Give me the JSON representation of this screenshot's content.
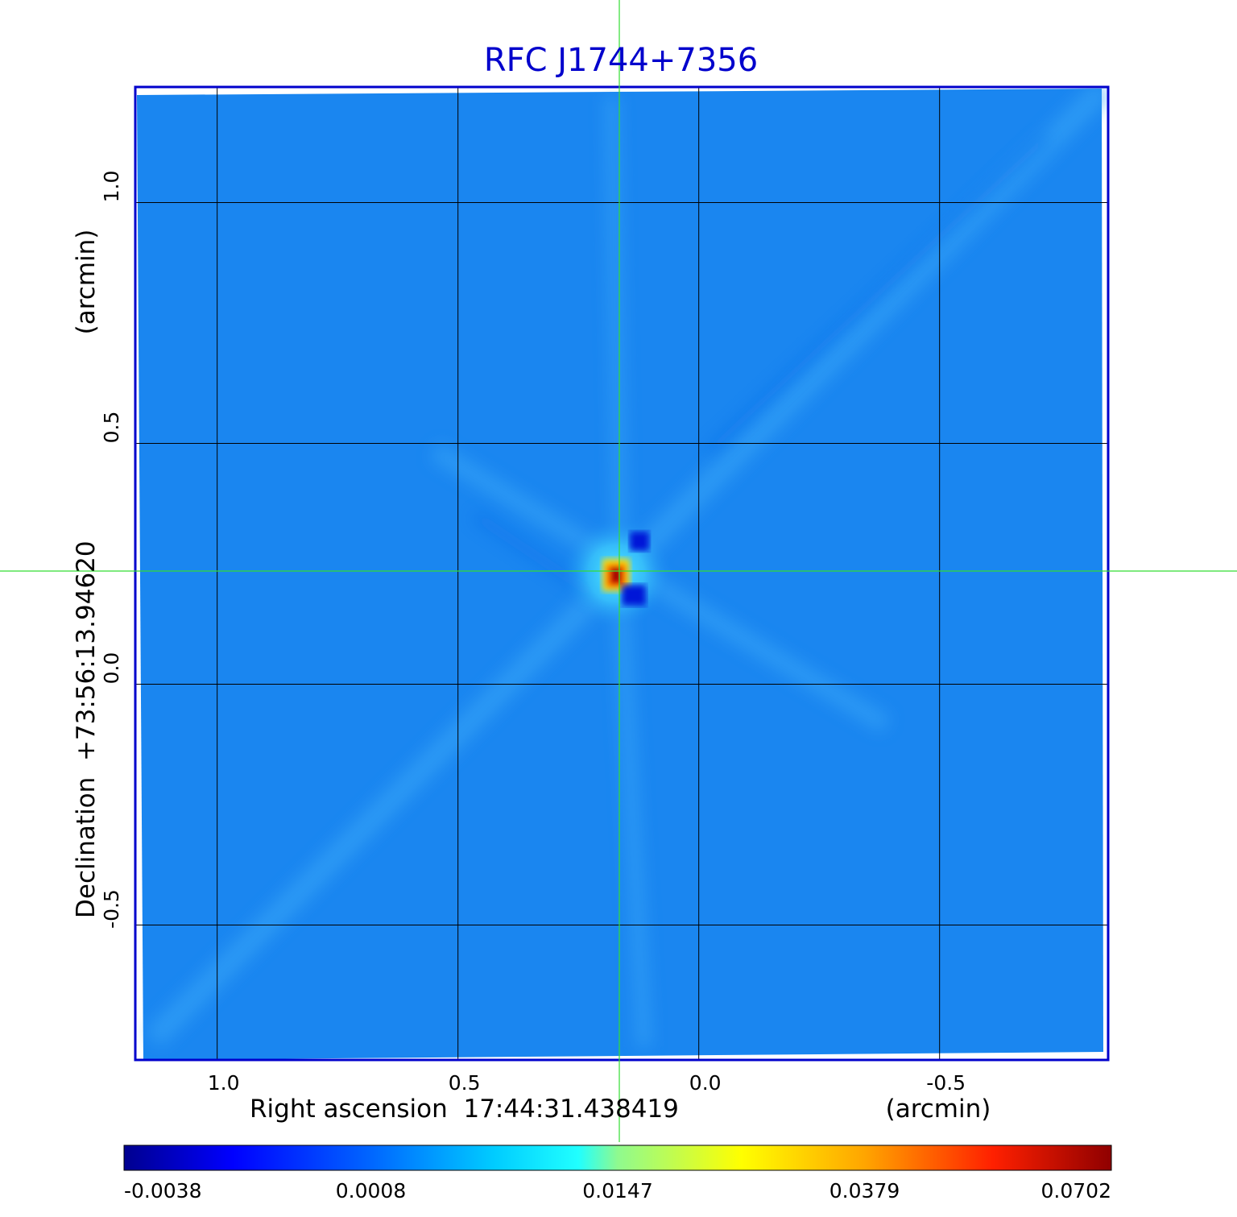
{
  "chart_data": {
    "type": "heatmap",
    "title": "RFC J1744+7356",
    "xlabel": "Right ascension  17:44:31.438419",
    "xunit": "(arcmin)",
    "ylabel": "Declination  +73:56:13.94620",
    "yunit": "(arcmin)",
    "x_reversed": true,
    "xlim": [
      1.17,
      -0.85
    ],
    "ylim": [
      -0.78,
      1.24
    ],
    "xticks": [
      1.0,
      0.5,
      0.0,
      -0.5
    ],
    "xtick_labels": [
      "1.0",
      "0.5",
      "0.0",
      "-0.5"
    ],
    "yticks": [
      1.0,
      0.5,
      0.0,
      -0.5
    ],
    "ytick_labels": [
      "1.0",
      "0.5",
      "0.0",
      "-0.5"
    ],
    "grid": true,
    "crosshair": {
      "x": 0.165,
      "y": 0.235
    },
    "peak": {
      "x": 0.165,
      "y": 0.23,
      "value": 0.0702
    },
    "colorbar": {
      "colormap": "jet",
      "tick_labels": [
        "-0.0038",
        "0.0008",
        "0.0147",
        "0.0379",
        "0.0702"
      ],
      "values": [
        -0.0038,
        0.0008,
        0.0147,
        0.0379,
        0.0702
      ]
    }
  },
  "colors": {
    "frame": "#0000cc",
    "title": "#0000cc",
    "crosshair": "#33dd33",
    "grid": "#000000",
    "background_map": "#1a86f0"
  }
}
